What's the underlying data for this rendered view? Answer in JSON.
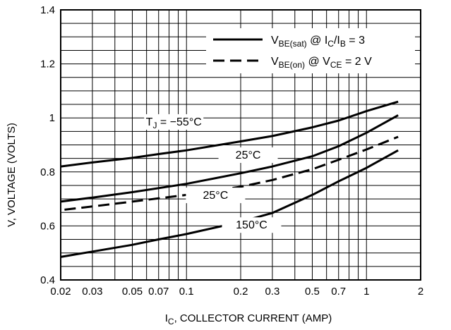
{
  "chart_data": {
    "type": "line",
    "title": "",
    "x_scale": "log",
    "y_scale": "linear",
    "xlim": [
      0.02,
      2
    ],
    "ylim": [
      0.4,
      1.4
    ],
    "grid": true,
    "x_ticks": [
      {
        "value": 0.02,
        "label": "0.02"
      },
      {
        "value": 0.03,
        "label": "0.03"
      },
      {
        "value": 0.05,
        "label": "0.05"
      },
      {
        "value": 0.07,
        "label": "0.07"
      },
      {
        "value": 0.1,
        "label": "0.1"
      },
      {
        "value": 0.2,
        "label": "0.2"
      },
      {
        "value": 0.3,
        "label": "0.3"
      },
      {
        "value": 0.5,
        "label": "0.5"
      },
      {
        "value": 0.7,
        "label": "0.7"
      },
      {
        "value": 1,
        "label": "1"
      },
      {
        "value": 2,
        "label": "2"
      }
    ],
    "y_ticks": [
      {
        "value": 0.4,
        "label": "0.4"
      },
      {
        "value": 0.6,
        "label": "0.6"
      },
      {
        "value": 0.8,
        "label": "0.8"
      },
      {
        "value": 1.0,
        "label": "1"
      },
      {
        "value": 1.2,
        "label": "1.2"
      },
      {
        "value": 1.4,
        "label": "1.4"
      }
    ],
    "xlabel": {
      "main": "I",
      "sub": "C",
      "rest": ", COLLECTOR CURRENT (AMP)"
    },
    "ylabel": "V, VOLTAGE (VOLTS)",
    "legend": {
      "placement": "top-right",
      "entries": [
        {
          "style": "solid",
          "parts": [
            [
              "V",
              ""
            ],
            [
              "BE(sat)",
              "sub"
            ],
            [
              " @ I",
              ""
            ],
            [
              "C",
              "sub"
            ],
            [
              "/I",
              ""
            ],
            [
              "B",
              "sub"
            ],
            [
              " = 3",
              ""
            ]
          ]
        },
        {
          "style": "dashed",
          "parts": [
            [
              "V",
              ""
            ],
            [
              "BE(on)",
              "sub"
            ],
            [
              " @ V",
              ""
            ],
            [
              "CE",
              "sub"
            ],
            [
              " = 2 V",
              ""
            ]
          ]
        }
      ]
    },
    "series": [
      {
        "style": "solid",
        "x": [
          0.02,
          0.03,
          0.05,
          0.07,
          0.1,
          0.2,
          0.3,
          0.5,
          0.7,
          1.0,
          1.5
        ],
        "y": [
          0.82,
          0.835,
          0.852,
          0.866,
          0.88,
          0.913,
          0.933,
          0.965,
          0.99,
          1.025,
          1.06
        ]
      },
      {
        "style": "solid",
        "x": [
          0.02,
          0.03,
          0.05,
          0.07,
          0.1,
          0.2,
          0.3,
          0.5,
          0.7,
          1.0,
          1.5
        ],
        "y": [
          0.69,
          0.705,
          0.725,
          0.74,
          0.756,
          0.795,
          0.82,
          0.858,
          0.895,
          0.945,
          1.01
        ]
      },
      {
        "style": "dashed",
        "x": [
          0.021,
          0.03,
          0.05,
          0.07,
          0.1,
          0.2,
          0.3,
          0.5,
          0.7,
          1.0,
          1.5
        ],
        "y": [
          0.66,
          0.672,
          0.69,
          0.702,
          0.715,
          0.745,
          0.77,
          0.81,
          0.845,
          0.883,
          0.93
        ]
      },
      {
        "style": "solid",
        "x": [
          0.02,
          0.03,
          0.05,
          0.07,
          0.1,
          0.2,
          0.3,
          0.5,
          0.7,
          1.0,
          1.5
        ],
        "y": [
          0.485,
          0.505,
          0.53,
          0.55,
          0.57,
          0.615,
          0.648,
          0.715,
          0.765,
          0.815,
          0.88
        ]
      }
    ],
    "annotations": [
      {
        "parts": [
          [
            "T",
            ""
          ],
          [
            "J",
            "sub"
          ],
          [
            " = −55°C",
            ""
          ]
        ],
        "x": 0.085,
        "y": 0.972
      },
      {
        "parts": [
          [
            "25°C",
            ""
          ]
        ],
        "x": 0.22,
        "y": 0.849
      },
      {
        "parts": [
          [
            "25°C",
            ""
          ]
        ],
        "x": 0.145,
        "y": 0.7
      },
      {
        "parts": [
          [
            "150°C",
            ""
          ]
        ],
        "x": 0.23,
        "y": 0.59
      }
    ]
  }
}
